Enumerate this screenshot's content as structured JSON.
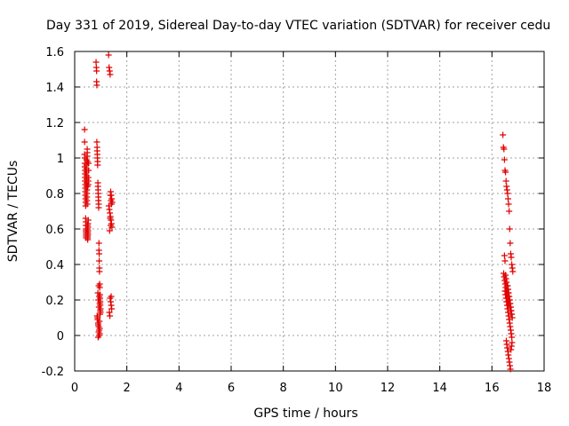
{
  "chart_data": {
    "type": "scatter",
    "title": "Day 331 of 2019, Sidereal Day-to-day VTEC variation (SDTVAR) for receiver cedu",
    "xlabel": "GPS time / hours",
    "ylabel": "SDTVAR / TECUs",
    "xlim": [
      0,
      18
    ],
    "ylim": [
      -0.2,
      1.6
    ],
    "x_ticks": [
      "0",
      "2",
      "4",
      "6",
      "8",
      "10",
      "12",
      "14",
      "16",
      "18"
    ],
    "y_ticks": [
      "-0.2",
      "0",
      "0.2",
      "0.4",
      "0.6",
      "0.8",
      "1",
      "1.2",
      "1.4",
      "1.6"
    ],
    "grid": true,
    "marker": "plus",
    "colors": {
      "series": "#e00000",
      "grid": "#a0a0a0",
      "axis": "#000000"
    },
    "series": [
      {
        "x": [
          0.38,
          0.38,
          0.38,
          0.39,
          0.39,
          0.39,
          0.4,
          0.4,
          0.4,
          0.4,
          0.41,
          0.41,
          0.41,
          0.41,
          0.42,
          0.42,
          0.42,
          0.42,
          0.43,
          0.43,
          0.43,
          0.43,
          0.44,
          0.44,
          0.44,
          0.44,
          0.45,
          0.45,
          0.45,
          0.45,
          0.46,
          0.46,
          0.46,
          0.46,
          0.47,
          0.47,
          0.47,
          0.47,
          0.48,
          0.48,
          0.48,
          0.48,
          0.49,
          0.49,
          0.49,
          0.49,
          0.5,
          0.5,
          0.5,
          0.5,
          0.51,
          0.51,
          0.51,
          0.51,
          0.52,
          0.52,
          0.52,
          0.52,
          0.53,
          0.53,
          0.82,
          0.83,
          0.84,
          0.84,
          0.85,
          0.85,
          0.86,
          0.86,
          0.87,
          0.87,
          0.88,
          0.88,
          0.89,
          0.89,
          0.9,
          0.9,
          0.91,
          0.91,
          0.92,
          0.92,
          0.93,
          0.93,
          0.94,
          0.94,
          0.95,
          0.95,
          0.96,
          0.96,
          0.97,
          0.97,
          0.98,
          0.98,
          0.99,
          0.99,
          0.86,
          0.88,
          0.9,
          0.92,
          0.94,
          0.96,
          0.9,
          0.92,
          0.94,
          0.96,
          0.98,
          0.88,
          0.9,
          0.92,
          0.94,
          0.96,
          0.95,
          0.97,
          0.93,
          0.91,
          0.89,
          1.3,
          1.32,
          1.34,
          1.36,
          1.38,
          1.4,
          1.42,
          1.44,
          1.31,
          1.33,
          1.35,
          1.37,
          1.39,
          1.41,
          1.43,
          1.34,
          1.36,
          1.38,
          1.4,
          1.42,
          1.33,
          1.35,
          1.37,
          1.39,
          1.41,
          1.36,
          1.38,
          1.4,
          16.42,
          16.44,
          16.46,
          16.48,
          16.5,
          16.52,
          16.54,
          16.56,
          16.58,
          16.6,
          16.62,
          16.64,
          16.66,
          16.68,
          16.7,
          16.72,
          16.74,
          16.76,
          16.78,
          16.8,
          16.48,
          16.5,
          16.52,
          16.54,
          16.56,
          16.58,
          16.6,
          16.62,
          16.64,
          16.66,
          16.68,
          16.7,
          16.72,
          16.74,
          16.5,
          16.52,
          16.54,
          16.56,
          16.58,
          16.6,
          16.62,
          16.64,
          16.66,
          16.68,
          16.7,
          16.72,
          16.74,
          16.76,
          16.55,
          16.57,
          16.59,
          16.61,
          16.63,
          16.65,
          16.67,
          16.69,
          16.71,
          16.73,
          16.75,
          16.77,
          16.6,
          16.62,
          16.64,
          16.66,
          16.68,
          16.7,
          16.72,
          16.74,
          16.76,
          16.78,
          16.45,
          16.47,
          16.49,
          16.51,
          16.53,
          16.55,
          16.57,
          16.59,
          16.61,
          16.63
        ],
        "y": [
          1.16,
          1.09,
          1.02,
          1.0,
          0.97,
          0.95,
          0.93,
          0.91,
          0.89,
          0.87,
          0.85,
          0.83,
          0.81,
          0.79,
          0.77,
          0.75,
          0.73,
          0.66,
          0.64,
          0.62,
          0.6,
          0.59,
          0.58,
          0.57,
          0.56,
          0.55,
          0.99,
          0.96,
          0.94,
          0.92,
          0.9,
          0.88,
          0.86,
          0.84,
          0.82,
          0.8,
          0.78,
          0.76,
          0.74,
          1.05,
          1.03,
          1.01,
          0.98,
          0.84,
          0.62,
          0.6,
          0.58,
          0.56,
          0.55,
          0.54,
          0.57,
          0.59,
          0.61,
          0.63,
          0.65,
          0.85,
          0.87,
          0.89,
          0.93,
          0.97,
          1.54,
          1.51,
          1.49,
          1.43,
          1.41,
          1.09,
          1.06,
          1.04,
          1.02,
          1.0,
          0.98,
          0.96,
          0.86,
          0.84,
          0.82,
          0.8,
          0.78,
          0.76,
          0.74,
          0.72,
          0.52,
          0.48,
          0.46,
          0.42,
          0.38,
          0.36,
          0.29,
          0.27,
          0.23,
          0.21,
          0.19,
          0.17,
          0.15,
          0.13,
          0.11,
          0.09,
          0.07,
          0.05,
          0.03,
          0.01,
          -0.01,
          0.28,
          0.22,
          0.18,
          0.14,
          0.1,
          0.06,
          0.02,
          0.0,
          0.04,
          0.08,
          0.12,
          0.16,
          0.2,
          0.24,
          1.58,
          1.51,
          1.49,
          1.47,
          0.81,
          0.79,
          0.77,
          0.75,
          0.73,
          0.71,
          0.69,
          0.67,
          0.65,
          0.63,
          0.61,
          0.59,
          0.21,
          0.19,
          0.17,
          0.15,
          0.13,
          0.11,
          0.79,
          0.76,
          0.74,
          0.66,
          0.62,
          0.22,
          1.13,
          1.06,
          1.05,
          0.99,
          0.93,
          0.92,
          0.87,
          0.84,
          0.82,
          0.8,
          0.77,
          0.74,
          0.7,
          0.6,
          0.52,
          0.46,
          0.44,
          0.4,
          0.38,
          0.36,
          0.45,
          0.42,
          0.34,
          0.32,
          0.3,
          0.28,
          0.26,
          0.24,
          0.22,
          0.2,
          0.18,
          0.16,
          0.14,
          0.12,
          0.25,
          0.23,
          0.21,
          0.19,
          0.17,
          0.15,
          0.13,
          0.11,
          0.09,
          0.07,
          0.05,
          0.03,
          0.01,
          -0.01,
          -0.03,
          -0.05,
          -0.07,
          -0.09,
          -0.11,
          -0.13,
          -0.15,
          -0.17,
          -0.19,
          -0.08,
          -0.06,
          -0.04,
          0.28,
          0.26,
          0.24,
          0.22,
          0.2,
          0.18,
          0.16,
          0.14,
          0.12,
          0.1,
          0.35,
          0.33,
          0.31,
          0.29,
          0.27,
          0.25,
          0.23,
          0.21,
          0.19,
          0.17
        ]
      }
    ]
  }
}
